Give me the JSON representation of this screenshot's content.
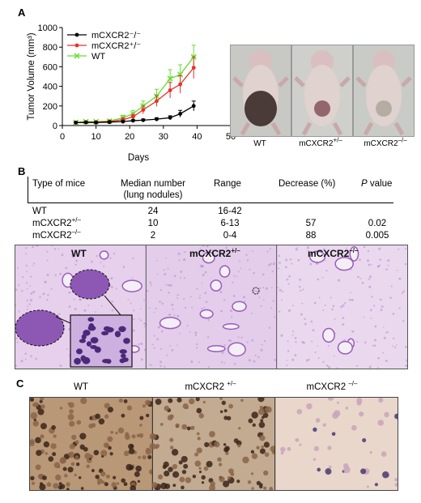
{
  "panels": {
    "a": "A",
    "b": "B",
    "c": "C"
  },
  "chart_data": {
    "type": "line",
    "ylabel": "Tumor Volume (mm³)",
    "xlabel": "Days",
    "xlim": [
      0,
      50
    ],
    "ylim": [
      0,
      1000
    ],
    "xticks": [
      0,
      10,
      20,
      30,
      40,
      50
    ],
    "yticks": [
      0,
      200,
      400,
      600,
      800,
      1000
    ],
    "legend_position": "top-left",
    "x": [
      4,
      7,
      10,
      14,
      18,
      21,
      24,
      28,
      32,
      35,
      39
    ],
    "series": [
      {
        "name": "mCXCR2⁻/⁻",
        "color": "#000000",
        "values": [
          30,
          32,
          30,
          35,
          40,
          50,
          55,
          65,
          80,
          120,
          200
        ],
        "errors": [
          8,
          8,
          8,
          8,
          10,
          10,
          12,
          15,
          20,
          35,
          50
        ]
      },
      {
        "name": "mCXCR2⁺/⁻",
        "color": "#e8312b",
        "values": [
          30,
          34,
          35,
          40,
          60,
          90,
          160,
          250,
          360,
          420,
          590
        ],
        "errors": [
          8,
          8,
          10,
          12,
          18,
          25,
          40,
          55,
          80,
          90,
          110
        ]
      },
      {
        "name": "WT",
        "color": "#66dd33",
        "values": [
          32,
          40,
          40,
          45,
          80,
          120,
          200,
          300,
          480,
          520,
          700
        ],
        "errors": [
          8,
          10,
          10,
          15,
          25,
          35,
          50,
          70,
          90,
          100,
          120
        ]
      }
    ]
  },
  "mouse_photos": [
    {
      "label": "WT",
      "sup": "",
      "tone": "#3a2a28"
    },
    {
      "label": "mCXCR2",
      "sup": "+/–",
      "tone": "#8a5a60"
    },
    {
      "label": "mCXCR2",
      "sup": "–/–",
      "tone": "#b0a8a0"
    }
  ],
  "table": {
    "headers": {
      "type": "Type of mice",
      "median_l1": "Median number",
      "median_l2": "(lung nodules)",
      "range": "Range",
      "decrease": "Decrease (%)",
      "pvalue": "P value"
    },
    "rows": [
      {
        "type": "WT",
        "sup": "",
        "median": "24",
        "range": "16-42",
        "decrease": "",
        "pvalue": ""
      },
      {
        "type": "mCXCR2",
        "sup": "+/–",
        "median": "10",
        "range": "6-13",
        "decrease": "57",
        "pvalue": "0.02"
      },
      {
        "type": "mCXCR2",
        "sup": "–/–",
        "median": "2",
        "range": "0-4",
        "decrease": "88",
        "pvalue": "0.005"
      }
    ]
  },
  "histology": [
    {
      "label": "WT",
      "sup": ""
    },
    {
      "label": "mCXCR2",
      "sup": "+/–"
    },
    {
      "label": "mCXCR2",
      "sup": "–/–"
    }
  ],
  "ihc": [
    {
      "label": "WT",
      "sup": ""
    },
    {
      "label": "mCXCR2 ",
      "sup": "+/–"
    },
    {
      "label": "mCXCR2 ",
      "sup": "–/–"
    }
  ]
}
